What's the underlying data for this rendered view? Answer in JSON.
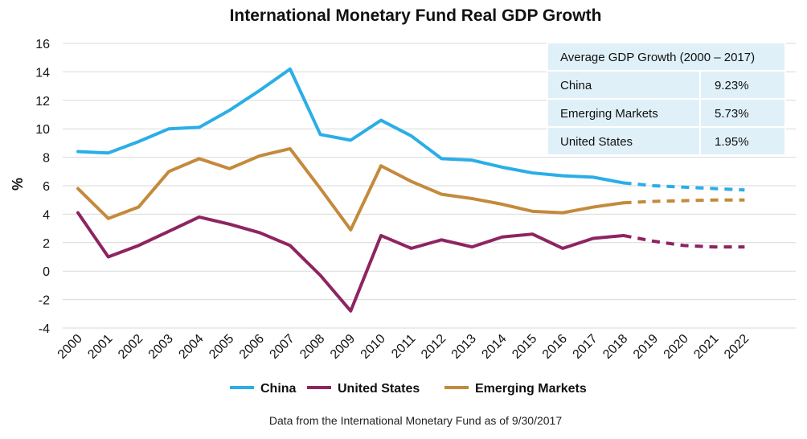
{
  "chart_data": {
    "type": "line",
    "title": "International Monetary Fund Real GDP Growth",
    "ylabel": "%",
    "xlabel": "",
    "ylim": [
      -4,
      16
    ],
    "yticks": [
      -4,
      -2,
      0,
      2,
      4,
      6,
      8,
      10,
      12,
      14,
      16
    ],
    "categories": [
      "2000",
      "2001",
      "2002",
      "2003",
      "2004",
      "2005",
      "2006",
      "2007",
      "2008",
      "2009",
      "2010",
      "2011",
      "2012",
      "2013",
      "2014",
      "2015",
      "2016",
      "2017",
      "2018",
      "2019",
      "2020",
      "2021",
      "2022"
    ],
    "projection_start": "2018",
    "grid": true,
    "series": [
      {
        "name": "China",
        "color": "#2BAEE6",
        "values": [
          8.4,
          8.3,
          9.1,
          10.0,
          10.1,
          11.3,
          12.7,
          14.2,
          9.6,
          9.2,
          10.6,
          9.5,
          7.9,
          7.8,
          7.3,
          6.9,
          6.7,
          6.6,
          6.2,
          6.0,
          5.9,
          5.8,
          5.7
        ]
      },
      {
        "name": "United States",
        "color": "#8E2461",
        "values": [
          4.1,
          1.0,
          1.8,
          2.8,
          3.8,
          3.3,
          2.7,
          1.8,
          -0.3,
          -2.8,
          2.5,
          1.6,
          2.2,
          1.7,
          2.4,
          2.6,
          1.6,
          2.3,
          2.5,
          2.1,
          1.8,
          1.7,
          1.7
        ]
      },
      {
        "name": "Emerging Markets",
        "color": "#C48A3C",
        "values": [
          5.8,
          3.7,
          4.5,
          7.0,
          7.9,
          7.2,
          8.1,
          8.6,
          5.8,
          2.9,
          7.4,
          6.3,
          5.4,
          5.1,
          4.7,
          4.2,
          4.1,
          4.5,
          4.8,
          4.9,
          4.95,
          5.0,
          5.0
        ]
      }
    ],
    "legend_order": [
      "China",
      "United States",
      "Emerging Markets"
    ],
    "legend_position": "bottom",
    "table": {
      "header": "Average GDP Growth (2000 – 2017)",
      "rows": [
        {
          "label": "China",
          "value": "9.23%"
        },
        {
          "label": "Emerging Markets",
          "value": "5.73%"
        },
        {
          "label": "United States",
          "value": "1.95%"
        }
      ]
    },
    "source": "Data from the International Monetary Fund as of 9/30/2017"
  }
}
